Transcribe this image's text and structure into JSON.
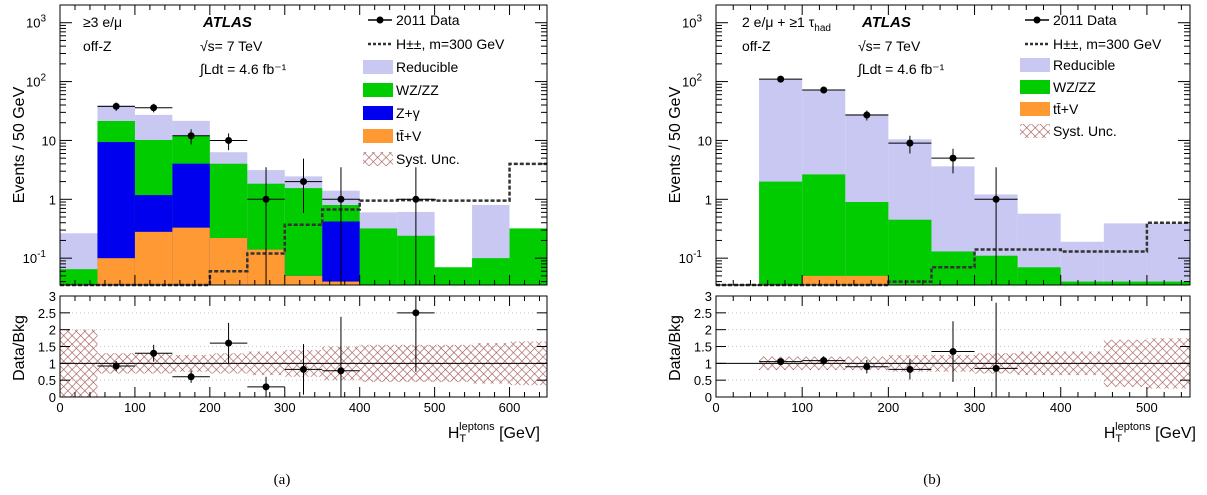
{
  "colors": {
    "reducible": "#c8c8f2",
    "wzzz": "#00cc00",
    "zgamma": "#0000ee",
    "ttv": "#ff9933",
    "syst": "#a05050",
    "data": "#000000",
    "signal": "#333333"
  },
  "panel_a": {
    "caption": "(a)",
    "label_line1": "≥3 e/μ",
    "label_line2": "off-Z",
    "atlas": "ATLAS",
    "energy": "√s= 7 TeV",
    "lumi": "∫Ldt = 4.6 fb⁻¹",
    "ylabel": "Events / 50 GeV",
    "ratio_ylabel": "Data/Bkg",
    "xlabel": "H_T^leptons [GeV]",
    "legend": {
      "data": "2011 Data",
      "signal": "H±±, m=300 GeV",
      "reducible": "Reducible",
      "wzzz": "WZ/ZZ",
      "zgamma": "Z+γ",
      "ttv": "tt̄+V",
      "syst": "Syst. Unc."
    }
  },
  "panel_b": {
    "caption": "(b)",
    "label_line1": "2 e/μ + ≥1 τ_had",
    "label_line2": "off-Z",
    "atlas": "ATLAS",
    "energy": "√s= 7 TeV",
    "lumi": "∫Ldt = 4.6 fb⁻¹",
    "ylabel": "Events / 50 GeV",
    "ratio_ylabel": "Data/Bkg",
    "xlabel": "H_T^leptons [GeV]",
    "legend": {
      "data": "2011 Data",
      "signal": "H±±, m=300 GeV",
      "reducible": "Reducible",
      "wzzz": "WZ/ZZ",
      "ttv": "tt̄+V",
      "syst": "Syst. Unc."
    }
  },
  "chart_data": [
    {
      "type": "bar",
      "panel": "a",
      "stacked": true,
      "log_y": true,
      "xlabel": "H_T^leptons [GeV]",
      "ylabel": "Events / 50 GeV",
      "xlim": [
        0,
        650
      ],
      "ylim": [
        0.035,
        2000
      ],
      "x_ticks": [
        0,
        100,
        200,
        300,
        400,
        500,
        600
      ],
      "bin_edges": [
        0,
        50,
        100,
        150,
        200,
        250,
        300,
        350,
        400,
        450,
        500,
        550,
        600,
        650
      ],
      "series": [
        {
          "name": "tt̄+V",
          "values": [
            0,
            0.1,
            0.28,
            0.33,
            0.22,
            0.14,
            0.05,
            0.04,
            0,
            0,
            0,
            0,
            0
          ]
        },
        {
          "name": "Z+γ",
          "values": [
            0,
            9.3,
            0.9,
            3.7,
            0,
            0,
            0,
            0.38,
            0,
            0,
            0,
            0,
            0
          ]
        },
        {
          "name": "WZ/ZZ",
          "values": [
            0.065,
            12,
            9,
            8,
            3.8,
            1.7,
            1.5,
            0.38,
            0.32,
            0.24,
            0.07,
            0.1,
            0.32
          ]
        },
        {
          "name": "Reducible",
          "values": [
            0.2,
            18,
            17,
            9.5,
            2.3,
            1.3,
            0.9,
            0.6,
            0.28,
            0.37,
            0,
            0.7,
            0
          ]
        }
      ],
      "signal": {
        "name": "H±±, m=300 GeV",
        "values": [
          0,
          0,
          0,
          0,
          0.06,
          0.12,
          0.37,
          0.67,
          0.95,
          0.97,
          0.95,
          0.95,
          4.0
        ]
      },
      "data": {
        "name": "2011 Data",
        "x": [
          75,
          125,
          175,
          225,
          275,
          325,
          375,
          475
        ],
        "y": [
          38,
          36,
          12,
          10,
          1,
          2,
          1,
          1
        ]
      },
      "ratio": {
        "ylabel": "Data/Bkg",
        "ylim": [
          0,
          3
        ],
        "y_ticks": [
          0,
          0.5,
          1,
          1.5,
          2,
          2.5,
          3
        ],
        "x": [
          75,
          125,
          175,
          225,
          275,
          325,
          375,
          475
        ],
        "y": [
          0.92,
          1.3,
          0.6,
          1.6,
          0.3,
          0.82,
          0.78,
          2.5
        ],
        "err": [
          0.15,
          0.25,
          0.18,
          0.6,
          0.3,
          0.75,
          1.6,
          1.75
        ],
        "syst_band": [
          1.0,
          0.3,
          0.3,
          0.25,
          0.3,
          0.35,
          0.4,
          0.5,
          0.55,
          0.55,
          0.55,
          0.6,
          0.65
        ]
      }
    },
    {
      "type": "bar",
      "panel": "b",
      "stacked": true,
      "log_y": true,
      "xlabel": "H_T^leptons [GeV]",
      "ylabel": "Events / 50 GeV",
      "xlim": [
        0,
        550
      ],
      "ylim": [
        0.035,
        2000
      ],
      "x_ticks": [
        0,
        100,
        200,
        300,
        400,
        500
      ],
      "bin_edges": [
        0,
        50,
        100,
        150,
        200,
        250,
        300,
        350,
        400,
        450,
        500,
        550
      ],
      "series": [
        {
          "name": "tt̄+V",
          "values": [
            0,
            0,
            0.05,
            0.05,
            0,
            0,
            0,
            0,
            0,
            0,
            0
          ]
        },
        {
          "name": "WZ/ZZ",
          "values": [
            0,
            2.0,
            2.6,
            0.85,
            0.45,
            0.13,
            0.11,
            0.07,
            0.04,
            0.04,
            0.04
          ]
        },
        {
          "name": "Reducible",
          "values": [
            0,
            108,
            68,
            27,
            10,
            3.5,
            1.1,
            0.5,
            0.15,
            0.35,
            0.35
          ]
        }
      ],
      "signal": {
        "name": "H±±, m=300 GeV",
        "values": [
          0,
          0,
          0,
          0,
          0.04,
          0.07,
          0.14,
          0.14,
          0.13,
          0.13,
          0.4
        ]
      },
      "data": {
        "name": "2011 Data",
        "x": [
          75,
          125,
          175,
          225,
          275,
          325
        ],
        "y": [
          110,
          72,
          27,
          9,
          5,
          1
        ]
      },
      "ratio": {
        "ylabel": "Data/Bkg",
        "ylim": [
          0,
          3
        ],
        "y_ticks": [
          0,
          0.5,
          1,
          1.5,
          2,
          2.5,
          3
        ],
        "x": [
          75,
          125,
          175,
          225,
          275,
          325
        ],
        "y": [
          1.05,
          1.08,
          0.9,
          0.82,
          1.35,
          0.85
        ],
        "err": [
          0.1,
          0.13,
          0.2,
          0.3,
          0.9,
          1.95
        ],
        "syst_band": [
          0,
          0.2,
          0.2,
          0.2,
          0.25,
          0.25,
          0.3,
          0.35,
          0.35,
          0.7,
          0.75
        ]
      }
    }
  ]
}
